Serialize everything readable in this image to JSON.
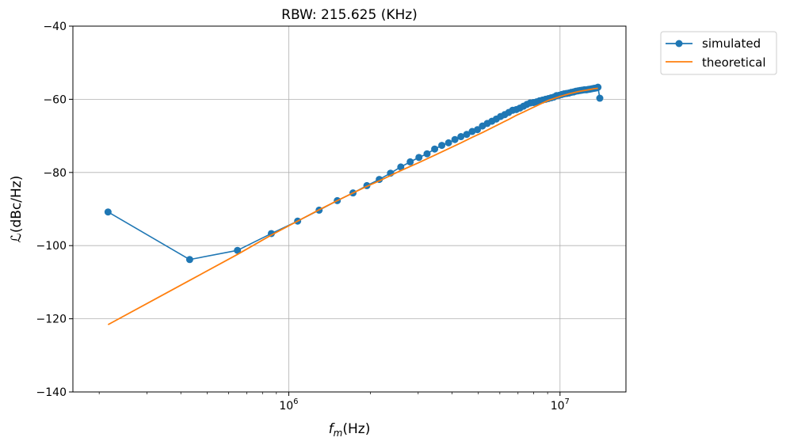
{
  "chart_data": {
    "type": "line",
    "title": "RBW: 215.625 (KHz)",
    "xlabel_main": "f",
    "xlabel_sub": "m",
    "xlabel_unit": "(Hz)",
    "ylabel": "ℒ(dBc/Hz)",
    "xscale": "log",
    "xlim": [
      160000,
      17500000
    ],
    "ylim": [
      -140,
      -40
    ],
    "yticks": [
      -140,
      -120,
      -100,
      -80,
      -60,
      -40
    ],
    "xticks_major": [
      1000000,
      10000000
    ],
    "xtick_labels": [
      {
        "base": "10",
        "exp": "6"
      },
      {
        "base": "10",
        "exp": "7"
      }
    ],
    "grid": true,
    "legend": "outside-top-right",
    "series": [
      {
        "name": "simulated",
        "color": "#1f77b4",
        "marker": "circle",
        "x": [
          215625,
          431250,
          646875,
          862500,
          1078125,
          1293750,
          1509375,
          1725000,
          1940625,
          2156250,
          2371875,
          2587500,
          2803125,
          3018750,
          3234375,
          3450000,
          3665625,
          3881250,
          4096875,
          4312500,
          4528125,
          4743750,
          4959375,
          5175000,
          5390625,
          5606250,
          5821875,
          6037500,
          6253125,
          6468750,
          6684375,
          6900000,
          7115625,
          7331250,
          7546875,
          7762500,
          7978125,
          8193750,
          8409375,
          8625000,
          8840625,
          9056250,
          9271875,
          9487500,
          9703125,
          9918750,
          10134375,
          10350000,
          10565625,
          10781250,
          10996875,
          11212500,
          11428125,
          11643750,
          11859375,
          12075000,
          12290625,
          12506250,
          12721875,
          12937500,
          13153125,
          13368750,
          13584375,
          13800000,
          14015625
        ],
        "y": [
          -90.8,
          -103.8,
          -101.3,
          -96.7,
          -93.3,
          -90.3,
          -87.7,
          -85.6,
          -83.6,
          -81.9,
          -80.2,
          -78.5,
          -77.1,
          -75.9,
          -74.9,
          -73.6,
          -72.6,
          -71.9,
          -71.0,
          -70.2,
          -69.6,
          -68.8,
          -68.3,
          -67.3,
          -66.6,
          -66.0,
          -65.4,
          -64.7,
          -64.2,
          -63.6,
          -63.0,
          -62.8,
          -62.4,
          -61.9,
          -61.4,
          -61.0,
          -60.9,
          -60.7,
          -60.4,
          -60.2,
          -60.0,
          -59.8,
          -59.6,
          -59.4,
          -59.0,
          -58.9,
          -58.7,
          -58.5,
          -58.4,
          -58.3,
          -58.1,
          -58.0,
          -57.8,
          -57.7,
          -57.6,
          -57.5,
          -57.4,
          -57.4,
          -57.3,
          -57.2,
          -57.1,
          -57.0,
          -56.9,
          -56.7,
          -59.7
        ]
      },
      {
        "name": "theoretical",
        "color": "#ff7f0e",
        "marker": "none",
        "x": [
          215625,
          431250,
          646875,
          862500,
          1078125,
          1293750,
          1509375,
          1725000,
          1940625,
          2156250,
          2587500,
          3018750,
          3450000,
          3881250,
          4312500,
          4743750,
          5175000,
          5606250,
          6037500,
          6468750,
          6900000,
          7331250,
          7762500,
          8193750,
          8625000,
          9056250,
          9487500,
          9918750,
          10350000,
          10781250,
          11212500,
          11643750,
          12075000,
          12506250,
          12937500,
          13368750,
          13800000
        ],
        "y": [
          -121.6,
          -109.5,
          -102.4,
          -97.1,
          -93.3,
          -90.2,
          -87.7,
          -85.6,
          -83.8,
          -82.3,
          -79.5,
          -77.3,
          -75.3,
          -73.5,
          -71.9,
          -70.4,
          -69.1,
          -67.8,
          -66.6,
          -65.5,
          -64.4,
          -63.5,
          -62.6,
          -61.8,
          -61.0,
          -60.3,
          -59.8,
          -59.3,
          -58.9,
          -58.5,
          -58.2,
          -57.9,
          -57.7,
          -57.5,
          -57.3,
          -57.1,
          -57.0
        ]
      }
    ]
  }
}
